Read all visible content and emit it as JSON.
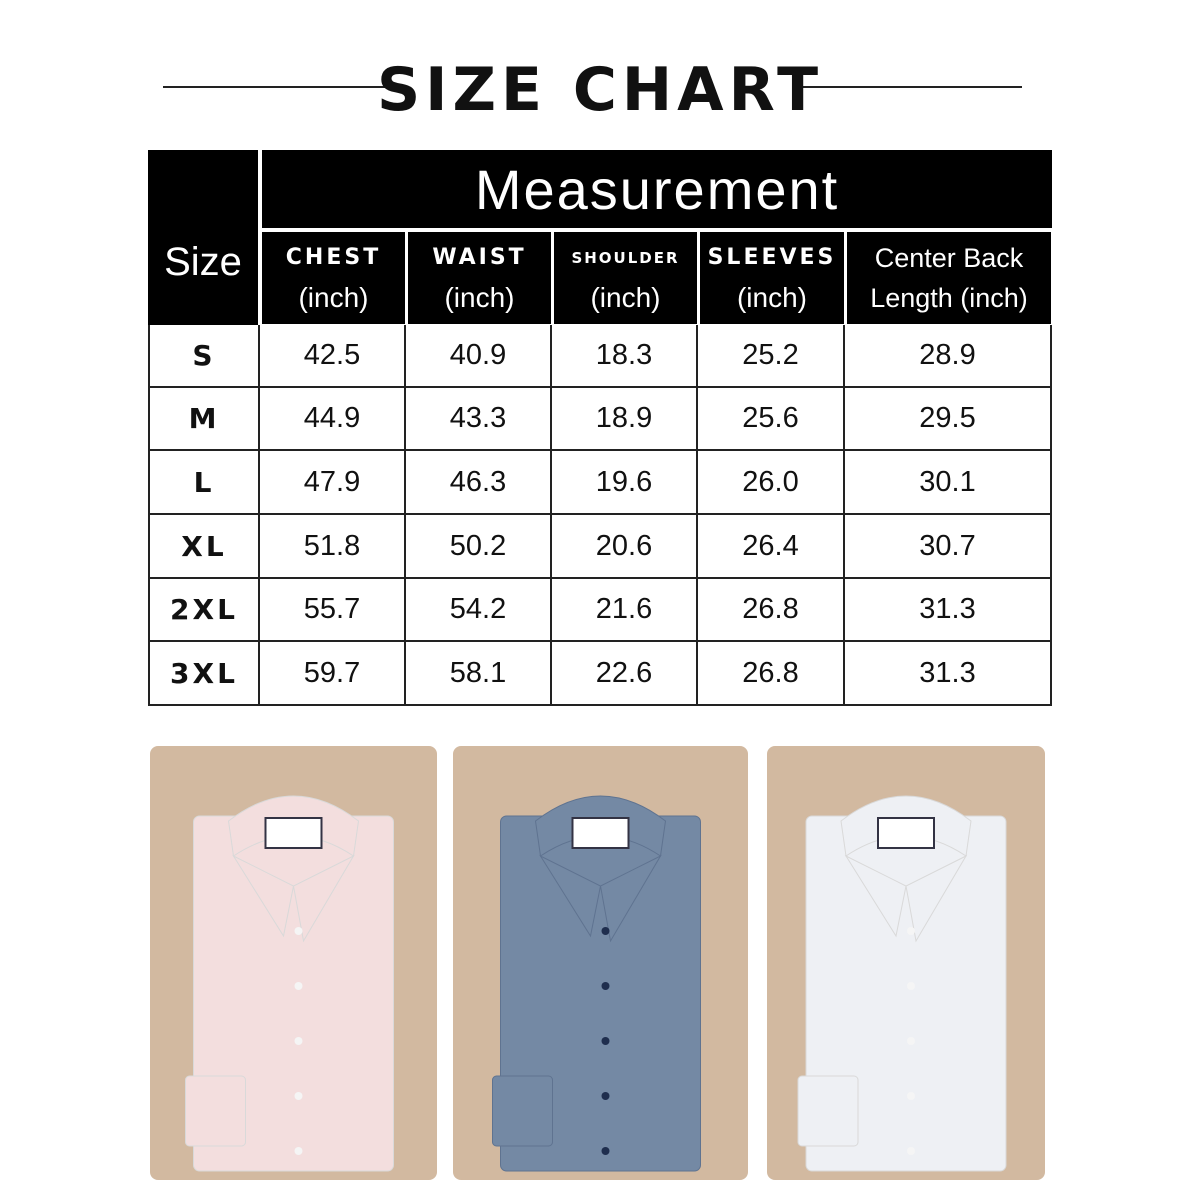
{
  "title": "SIZE CHART",
  "table": {
    "size_header": "Size",
    "group_header": "Measurement",
    "columns": [
      {
        "name": "CHEST",
        "unit": "(inch)"
      },
      {
        "name": "WAIST",
        "unit": "(inch)"
      },
      {
        "name": "SHOULDER",
        "unit": "(inch)"
      },
      {
        "name": "SLEEVES",
        "unit": "(inch)"
      },
      {
        "name": "Center Back",
        "unit": "Length (inch)"
      }
    ],
    "rows": [
      {
        "size": "S",
        "values": [
          "42.5",
          "40.9",
          "18.3",
          "25.2",
          "28.9"
        ]
      },
      {
        "size": "M",
        "values": [
          "44.9",
          "43.3",
          "18.9",
          "25.6",
          "29.5"
        ]
      },
      {
        "size": "L",
        "values": [
          "47.9",
          "46.3",
          "19.6",
          "26.0",
          "30.1"
        ]
      },
      {
        "size": "XL",
        "values": [
          "51.8",
          "50.2",
          "20.6",
          "26.4",
          "30.7"
        ]
      },
      {
        "size": "2XL",
        "values": [
          "55.7",
          "54.2",
          "21.6",
          "26.8",
          "31.3"
        ]
      },
      {
        "size": "3XL",
        "values": [
          "59.7",
          "58.1",
          "22.6",
          "26.8",
          "31.3"
        ]
      }
    ]
  },
  "shirts": [
    {
      "color": "#f3dede",
      "label": "pink check shirt"
    },
    {
      "color": "#7489a4",
      "label": "blue shirt"
    },
    {
      "color": "#eef0f4",
      "label": "white pinstripe shirt"
    }
  ],
  "colors": {
    "header_bg": "#000000",
    "panel_bg": "#d2b9a0"
  }
}
